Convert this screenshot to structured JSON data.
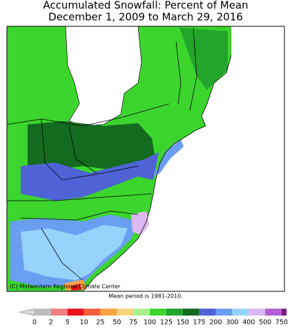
{
  "title": [
    "Accumulated Snowfall: Percent of Mean",
    "December 1, 2009 to March 29, 2016"
  ],
  "credit": "(C) Midwestern Regional Climate Center",
  "note": "Mean period is 1981-2010.",
  "legend": {
    "labels": [
      "0",
      "2",
      "5",
      "10",
      "25",
      "50",
      "75",
      "100",
      "125",
      "150",
      "175",
      "200",
      "300",
      "400",
      "500",
      "750"
    ],
    "colors": [
      "#bdbdbd",
      "#f08080",
      "#e8141c",
      "#f4603c",
      "#f9a345",
      "#fcd37f",
      "#a7f08e",
      "#3cd52e",
      "#23a52b",
      "#146b1f",
      "#4f63d6",
      "#6a9ef0",
      "#96d2fa",
      "#dcb8f0",
      "#b35fd0",
      "#7a1a8c"
    ]
  }
}
